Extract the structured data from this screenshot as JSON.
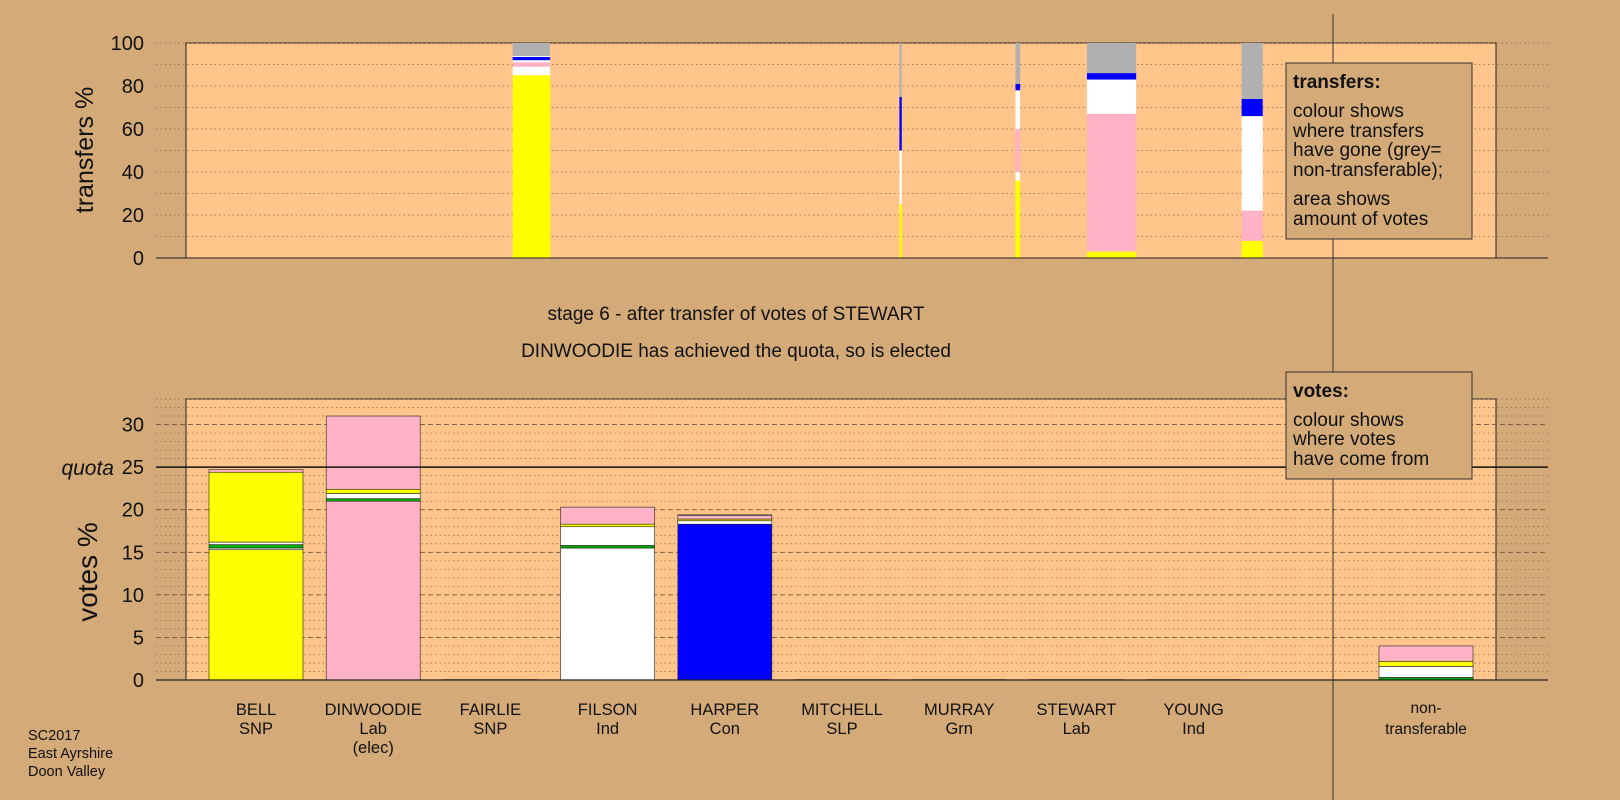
{
  "colors": {
    "background": "#d4aa78",
    "plot_bg": "#ffc58a",
    "SNP": "#ffff00",
    "Lab": "#ffb1c6",
    "Ind": "#ffffff",
    "Con": "#0000ff",
    "Grn": "#00aa00",
    "SLP": "#dd0000",
    "nontransferable": "#b0b0b0"
  },
  "footer": {
    "lines": [
      "SC2017",
      "East Ayrshire",
      "Doon Valley"
    ]
  },
  "stage_title": "stage 6 - after transfer of votes of STEWART",
  "stage_subtitle": "DINWOODIE has achieved the quota, so is elected",
  "legend_transfers": {
    "title": "transfers:",
    "lines": [
      "colour shows",
      "where transfers",
      "have gone (grey=",
      "non-transferable);",
      "area shows",
      "amount of votes"
    ]
  },
  "legend_votes": {
    "title": "votes:",
    "lines": [
      "colour shows",
      "where votes",
      "have come from"
    ]
  },
  "chart_data": [
    {
      "type": "bar",
      "stacked": true,
      "ylabel": "transfers %",
      "ylim": [
        0,
        100
      ],
      "yticks": [
        "0",
        "20",
        "40",
        "60",
        "80",
        "100"
      ],
      "grid": "dotted",
      "bars": [
        {
          "x": 2.35,
          "width": 0.32,
          "segments": [
            {
              "color": "SNP",
              "value": 85
            },
            {
              "color": "Ind",
              "value": 4
            },
            {
              "color": "Lab",
              "value": 2
            },
            {
              "color": "Ind",
              "value": 1
            },
            {
              "color": "Con",
              "value": 1.5
            },
            {
              "color": "Ind",
              "value": 0.5
            },
            {
              "color": "nontransferable",
              "value": 6
            }
          ]
        },
        {
          "x": 5.5,
          "width": 0.02,
          "segments": [
            {
              "color": "SNP",
              "value": 25
            },
            {
              "color": "Ind",
              "value": 25
            },
            {
              "color": "Con",
              "value": 25
            },
            {
              "color": "nontransferable",
              "value": 25
            }
          ]
        },
        {
          "x": 6.5,
          "width": 0.04,
          "segments": [
            {
              "color": "SNP",
              "value": 36
            },
            {
              "color": "Ind",
              "value": 4
            },
            {
              "color": "Lab",
              "value": 20
            },
            {
              "color": "Ind",
              "value": 18
            },
            {
              "color": "Con",
              "value": 3
            },
            {
              "color": "nontransferable",
              "value": 19
            }
          ]
        },
        {
          "x": 7.3,
          "width": 0.42,
          "segments": [
            {
              "color": "SNP",
              "value": 3
            },
            {
              "color": "Lab",
              "value": 64
            },
            {
              "color": "Ind",
              "value": 16
            },
            {
              "color": "Con",
              "value": 3
            },
            {
              "color": "nontransferable",
              "value": 14
            }
          ]
        },
        {
          "x": 8.5,
          "width": 0.18,
          "segments": [
            {
              "color": "SNP",
              "value": 8
            },
            {
              "color": "Lab",
              "value": 14
            },
            {
              "color": "Ind",
              "value": 44
            },
            {
              "color": "Con",
              "value": 8
            },
            {
              "color": "nontransferable",
              "value": 26
            }
          ]
        }
      ]
    },
    {
      "type": "bar",
      "stacked": true,
      "ylabel": "votes %",
      "ylim": [
        0,
        33
      ],
      "yticks": [
        "0",
        "5",
        "10",
        "15",
        "20",
        "25",
        "30"
      ],
      "grid": "dashed",
      "quota": 25,
      "quota_label": "quota",
      "categories": [
        {
          "name": "BELL",
          "party": "SNP",
          "note": ""
        },
        {
          "name": "DINWOODIE",
          "party": "Lab",
          "note": "(elec)"
        },
        {
          "name": "FAIRLIE",
          "party": "SNP",
          "note": ""
        },
        {
          "name": "FILSON",
          "party": "Ind",
          "note": ""
        },
        {
          "name": "HARPER",
          "party": "Con",
          "note": ""
        },
        {
          "name": "MITCHELL",
          "party": "SLP",
          "note": ""
        },
        {
          "name": "MURRAY",
          "party": "Grn",
          "note": ""
        },
        {
          "name": "STEWART",
          "party": "Lab",
          "note": ""
        },
        {
          "name": "YOUNG",
          "party": "Ind",
          "note": ""
        }
      ],
      "nontransferable_label": [
        "non-",
        "transferable"
      ],
      "stacks": [
        [
          {
            "color": "SNP",
            "value": 15.3
          },
          {
            "color": "Ind",
            "value": 0.2
          },
          {
            "color": "Grn",
            "value": 0.4
          },
          {
            "color": "Ind",
            "value": 0.3
          },
          {
            "color": "SNP",
            "value": 8.2
          },
          {
            "color": "Lab",
            "value": 0.3
          }
        ],
        [
          {
            "color": "Lab",
            "value": 21
          },
          {
            "color": "Grn",
            "value": 0.3
          },
          {
            "color": "Ind",
            "value": 0.6
          },
          {
            "color": "SNP",
            "value": 0.5
          },
          {
            "color": "Lab",
            "value": 8.6
          }
        ],
        [
          {
            "color": "SNP",
            "value": 0.05
          }
        ],
        [
          {
            "color": "Ind",
            "value": 15.5
          },
          {
            "color": "Grn",
            "value": 0.3
          },
          {
            "color": "Ind",
            "value": 2.2
          },
          {
            "color": "SNP",
            "value": 0.3
          },
          {
            "color": "Lab",
            "value": 2
          }
        ],
        [
          {
            "color": "Con",
            "value": 18.3
          },
          {
            "color": "Ind",
            "value": 0.4
          },
          {
            "color": "SNP",
            "value": 0.2
          },
          {
            "color": "Lab",
            "value": 0.4
          },
          {
            "color": "Ind",
            "value": 0.1
          }
        ],
        [
          {
            "color": "SLP",
            "value": 0.05
          }
        ],
        [
          {
            "color": "Grn",
            "value": 0.05
          }
        ],
        [
          {
            "color": "Lab",
            "value": 0.05
          }
        ],
        [
          {
            "color": "Ind",
            "value": 0.05
          }
        ]
      ],
      "nontransferable_stack": [
        {
          "color": "Grn",
          "value": 0.3
        },
        {
          "color": "Ind",
          "value": 1.3
        },
        {
          "color": "SNP",
          "value": 0.6
        },
        {
          "color": "Lab",
          "value": 1.8
        }
      ]
    }
  ]
}
